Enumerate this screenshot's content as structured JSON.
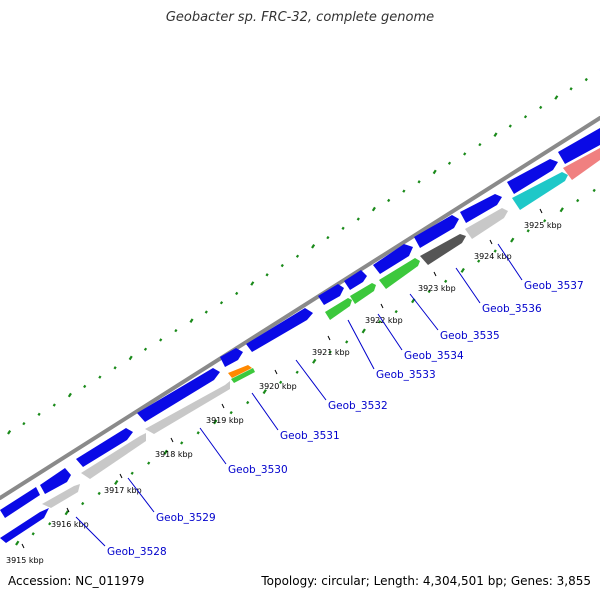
{
  "title": "Geobacter sp. FRC-32, complete genome",
  "footer": {
    "accession_label": "Accession:",
    "accession": "NC_011979",
    "topology_label": "Topology:",
    "topology": "circular",
    "length_label": "Length:",
    "length": "4,304,501 bp",
    "genes_label": "Genes:",
    "genes": "3,855"
  },
  "colors": {
    "forward_cds": "#0a0ae6",
    "reverse_cds": "#c8c8c8",
    "green": "#3cc83c",
    "dark_gray": "#555555",
    "cyan": "#1ec8c8",
    "pink": "#f08080",
    "orange": "#ff8800",
    "backbone": "#888888",
    "gc_ticks": "#1a8a1a",
    "label": "#0000cc"
  },
  "kbp_ticks": [
    "3915 kbp",
    "3916 kbp",
    "3917 kbp",
    "3918 kbp",
    "3919 kbp",
    "3920 kbp",
    "3921 kbp",
    "3922 kbp",
    "3923 kbp",
    "3924 kbp",
    "3925 kbp"
  ],
  "gene_labels": [
    "Geob_3528",
    "Geob_3529",
    "Geob_3530",
    "Geob_3531",
    "Geob_3532",
    "Geob_3533",
    "Geob_3534",
    "Geob_3535",
    "Geob_3536",
    "Geob_3537"
  ]
}
